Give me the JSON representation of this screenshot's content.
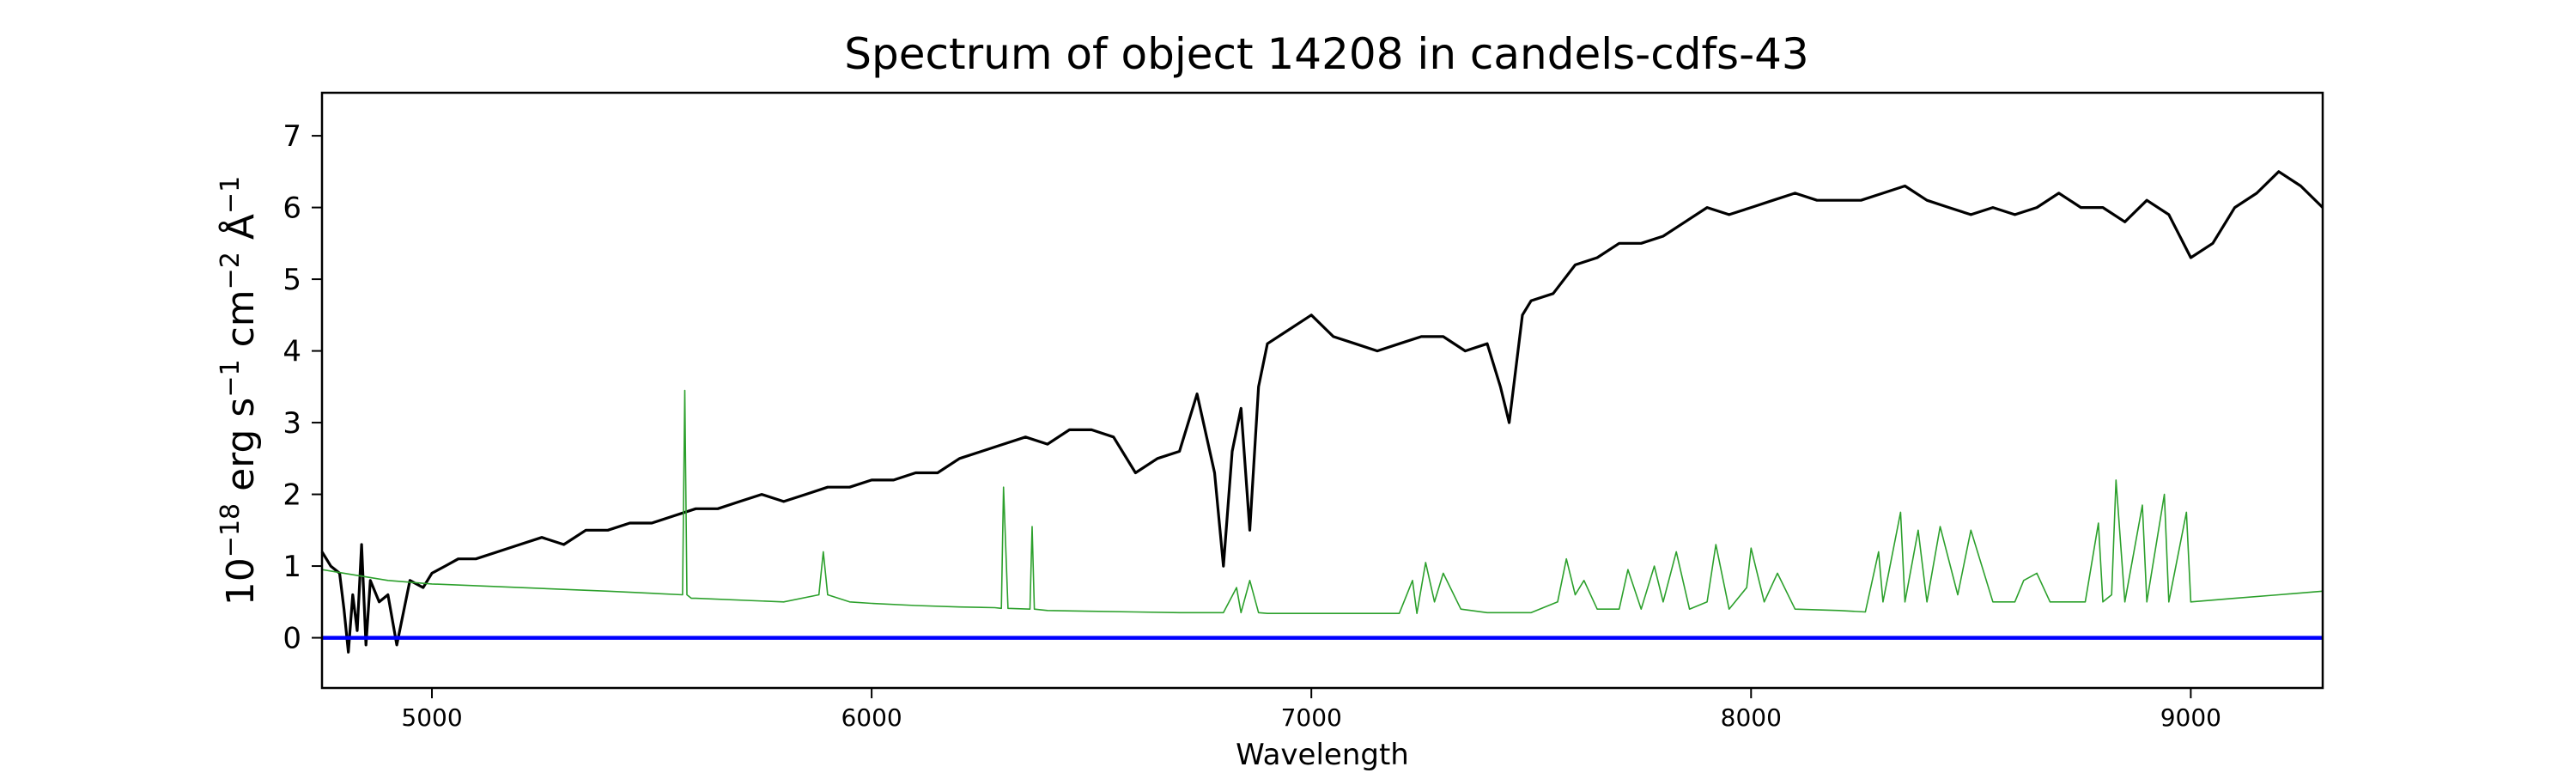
{
  "chart_data": {
    "type": "line",
    "title": "Spectrum of object 14208 in candels-cdfs-43",
    "xlabel": "Wavelength",
    "ylabel_parts": [
      "10",
      "−18",
      " erg s",
      "−1",
      " cm",
      "−2",
      " Å",
      "−1"
    ],
    "xlim": [
      4750,
      9300
    ],
    "ylim": [
      -0.7,
      7.6
    ],
    "xticks": [
      5000,
      6000,
      7000,
      8000,
      9000
    ],
    "yticks": [
      0,
      1,
      2,
      3,
      4,
      5,
      6,
      7
    ],
    "grid": false,
    "series": [
      {
        "role": "object spectrum",
        "color": "#000000",
        "x": [
          4750,
          4770,
          4790,
          4800,
          4810,
          4820,
          4830,
          4840,
          4850,
          4860,
          4880,
          4900,
          4920,
          4950,
          4980,
          5000,
          5030,
          5060,
          5100,
          5150,
          5200,
          5250,
          5300,
          5350,
          5400,
          5450,
          5500,
          5550,
          5600,
          5650,
          5700,
          5750,
          5800,
          5850,
          5900,
          5950,
          6000,
          6050,
          6100,
          6150,
          6200,
          6250,
          6300,
          6350,
          6400,
          6450,
          6500,
          6550,
          6600,
          6650,
          6700,
          6740,
          6780,
          6800,
          6820,
          6840,
          6860,
          6880,
          6900,
          6950,
          7000,
          7050,
          7100,
          7150,
          7200,
          7250,
          7300,
          7350,
          7400,
          7430,
          7450,
          7480,
          7500,
          7550,
          7600,
          7650,
          7700,
          7750,
          7800,
          7850,
          7900,
          7950,
          8000,
          8050,
          8100,
          8150,
          8200,
          8250,
          8300,
          8350,
          8400,
          8450,
          8500,
          8550,
          8600,
          8650,
          8700,
          8750,
          8800,
          8850,
          8900,
          8950,
          9000,
          9050,
          9100,
          9150,
          9200,
          9250,
          9300
        ],
        "y": [
          1.2,
          1.0,
          0.9,
          0.4,
          -0.2,
          0.6,
          0.1,
          1.3,
          -0.1,
          0.8,
          0.5,
          0.6,
          -0.1,
          0.8,
          0.7,
          0.9,
          1.0,
          1.1,
          1.1,
          1.2,
          1.3,
          1.4,
          1.3,
          1.5,
          1.5,
          1.6,
          1.6,
          1.7,
          1.8,
          1.8,
          1.9,
          2.0,
          1.9,
          2.0,
          2.1,
          2.1,
          2.2,
          2.2,
          2.3,
          2.3,
          2.5,
          2.6,
          2.7,
          2.8,
          2.7,
          2.9,
          2.9,
          2.8,
          2.3,
          2.5,
          2.6,
          3.4,
          2.3,
          1.0,
          2.6,
          3.2,
          1.5,
          3.5,
          4.1,
          4.3,
          4.5,
          4.2,
          4.1,
          4.0,
          4.1,
          4.2,
          4.2,
          4.0,
          4.1,
          3.5,
          3.0,
          4.5,
          4.7,
          4.8,
          5.2,
          5.3,
          5.5,
          5.5,
          5.6,
          5.8,
          6.0,
          5.9,
          6.0,
          6.1,
          6.2,
          6.1,
          6.1,
          6.1,
          6.2,
          6.3,
          6.1,
          6.0,
          5.9,
          6.0,
          5.9,
          6.0,
          6.2,
          6.0,
          6.0,
          5.8,
          6.1,
          5.9,
          5.3,
          5.5,
          6.0,
          6.2,
          6.5,
          6.3,
          6.0
        ]
      },
      {
        "role": "sky / noise spectrum",
        "color": "#2ca02c",
        "x": [
          4750,
          4800,
          4900,
          5000,
          5200,
          5400,
          5570,
          5575,
          5580,
          5590,
          5600,
          5800,
          5880,
          5890,
          5900,
          5950,
          6000,
          6100,
          6200,
          6280,
          6295,
          6300,
          6310,
          6360,
          6365,
          6370,
          6400,
          6500,
          6600,
          6700,
          6800,
          6830,
          6840,
          6860,
          6880,
          6900,
          7000,
          7100,
          7200,
          7230,
          7240,
          7260,
          7280,
          7300,
          7340,
          7400,
          7500,
          7560,
          7580,
          7600,
          7620,
          7650,
          7700,
          7720,
          7750,
          7780,
          7800,
          7830,
          7860,
          7900,
          7920,
          7950,
          7990,
          8000,
          8030,
          8060,
          8100,
          8200,
          8260,
          8290,
          8300,
          8340,
          8350,
          8380,
          8400,
          8430,
          8470,
          8500,
          8550,
          8600,
          8620,
          8650,
          8680,
          8700,
          8760,
          8790,
          8800,
          8820,
          8830,
          8850,
          8890,
          8900,
          8940,
          8950,
          8990,
          9000,
          9100,
          9200,
          9300
        ],
        "y": [
          0.95,
          0.9,
          0.8,
          0.75,
          0.7,
          0.65,
          0.6,
          3.45,
          0.6,
          0.55,
          0.55,
          0.5,
          0.6,
          1.2,
          0.6,
          0.5,
          0.48,
          0.45,
          0.43,
          0.42,
          0.41,
          2.1,
          0.41,
          0.4,
          1.55,
          0.4,
          0.38,
          0.37,
          0.36,
          0.35,
          0.35,
          0.7,
          0.35,
          0.8,
          0.35,
          0.34,
          0.34,
          0.34,
          0.34,
          0.8,
          0.34,
          1.05,
          0.5,
          0.9,
          0.4,
          0.35,
          0.35,
          0.5,
          1.1,
          0.6,
          0.8,
          0.4,
          0.4,
          0.95,
          0.4,
          1.0,
          0.5,
          1.2,
          0.4,
          0.5,
          1.3,
          0.4,
          0.7,
          1.25,
          0.5,
          0.9,
          0.4,
          0.38,
          0.36,
          1.2,
          0.5,
          1.75,
          0.5,
          1.5,
          0.5,
          1.55,
          0.6,
          1.5,
          0.5,
          0.5,
          0.8,
          0.9,
          0.5,
          0.5,
          0.5,
          1.6,
          0.5,
          0.6,
          2.2,
          0.5,
          1.85,
          0.5,
          2.0,
          0.5,
          1.75,
          0.5,
          0.55,
          0.6,
          0.65
        ]
      },
      {
        "role": "zero line",
        "color": "#0000ff",
        "x": [
          4750,
          9300
        ],
        "y": [
          0,
          0
        ]
      }
    ]
  }
}
